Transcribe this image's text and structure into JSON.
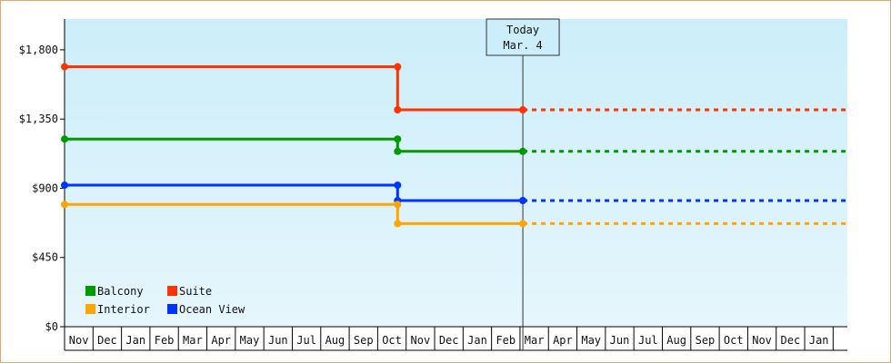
{
  "chart_data": {
    "type": "line",
    "step": true,
    "title": "",
    "xlabel": "",
    "ylabel": "",
    "ylim": [
      0,
      2000
    ],
    "y_ticks": [
      "$0",
      "$450",
      "$900",
      "$1,350",
      "$1,800"
    ],
    "y_tick_values": [
      0,
      450,
      900,
      1350,
      1800
    ],
    "grid": false,
    "background": [
      "#cceefa",
      "#e6f6fc"
    ],
    "x_months": [
      "Nov",
      "Dec",
      "Jan",
      "Feb",
      "Mar",
      "Apr",
      "May",
      "Jun",
      "Jul",
      "Aug",
      "Sep",
      "Oct",
      "Nov",
      "Dec",
      "Jan",
      "Feb",
      "Mar",
      "Apr",
      "May",
      "Jun",
      "Jul",
      "Aug",
      "Sep",
      "Oct",
      "Nov",
      "Dec",
      "Jan"
    ],
    "today": {
      "label_line1": "Today",
      "label_line2": "Mar. 4",
      "x": 16.1
    },
    "forecast_end_x": 27.6,
    "series": [
      {
        "name": "Suite",
        "color": "#ff3300",
        "points": [
          [
            0,
            1690
          ],
          [
            11.7,
            1690
          ],
          [
            11.7,
            1410
          ],
          [
            16.1,
            1410
          ]
        ],
        "forecast": 1410
      },
      {
        "name": "Balcony",
        "color": "#009900",
        "points": [
          [
            0,
            1220
          ],
          [
            11.7,
            1220
          ],
          [
            11.7,
            1140
          ],
          [
            16.1,
            1140
          ]
        ],
        "forecast": 1140
      },
      {
        "name": "Ocean View",
        "color": "#0033ff",
        "points": [
          [
            0,
            920
          ],
          [
            11.7,
            920
          ],
          [
            11.7,
            820
          ],
          [
            16.1,
            820
          ]
        ],
        "forecast": 820
      },
      {
        "name": "Interior",
        "color": "#ffa500",
        "points": [
          [
            0,
            795
          ],
          [
            11.7,
            795
          ],
          [
            11.7,
            670
          ],
          [
            16.1,
            670
          ]
        ],
        "forecast": 670
      }
    ],
    "legend": {
      "placement": "bottom-left",
      "rows": [
        [
          "Balcony",
          "Suite"
        ],
        [
          "Interior",
          "Ocean View"
        ]
      ]
    }
  }
}
